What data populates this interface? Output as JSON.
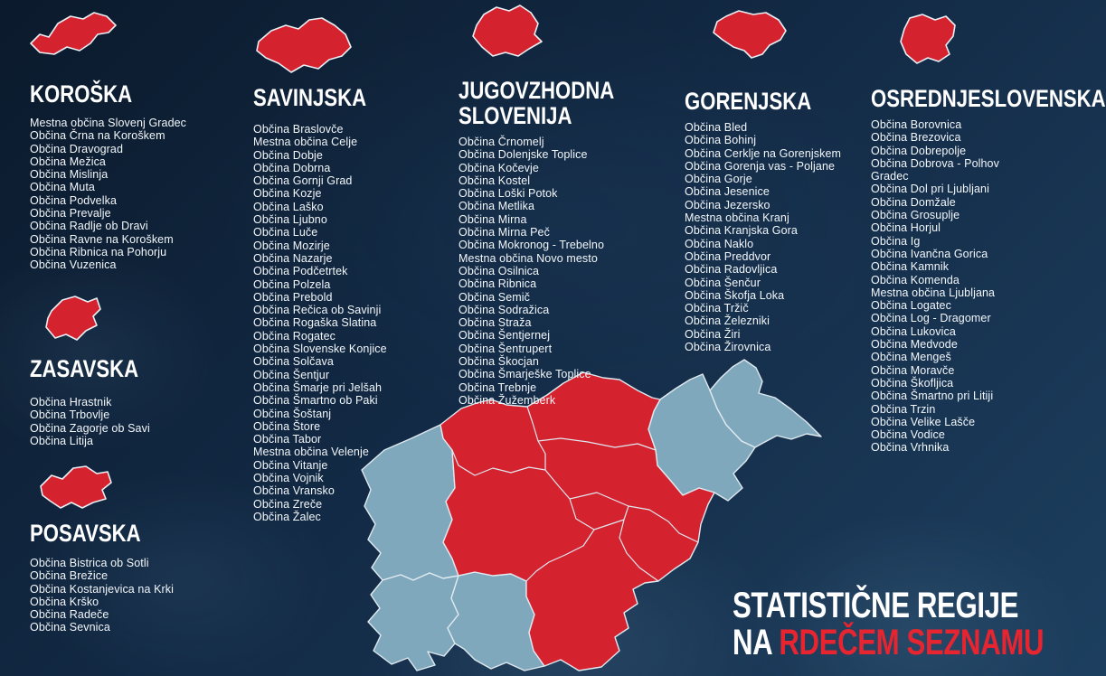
{
  "title": {
    "line1": "STATISTIČNE REGIJE",
    "line2_prefix": "NA ",
    "line2_highlight": "RDEČEM SEZNAMU"
  },
  "colors": {
    "background": "#10243b",
    "red": "#d5222f",
    "map_gray": "#7fa8bc",
    "title_red": "#e62531",
    "map_stroke": "#dfe9f0",
    "text": "#ffffff"
  },
  "regions": {
    "koroska": {
      "name": "KOROŠKA",
      "municipalities": [
        "Mestna občina Slovenj Gradec",
        "Občina Črna na Koroškem",
        "Občina Dravograd",
        "Občina Mežica",
        "Občina Mislinja",
        "Občina Muta",
        "Občina Podvelka",
        "Občina Prevalje",
        "Občina Radlje ob Dravi",
        "Občina Ravne na Koroškem",
        "Občina Ribnica na Pohorju",
        "Občina Vuzenica"
      ]
    },
    "zasavska": {
      "name": "ZASAVSKA",
      "municipalities": [
        "Občina Hrastnik",
        "Občina Trbovlje",
        "Občina Zagorje ob Savi",
        "Občina Litija"
      ]
    },
    "posavska": {
      "name": "POSAVSKA",
      "municipalities": [
        "Občina Bistrica ob Sotli",
        "Občina Brežice",
        "Občina Kostanjevica na Krki",
        "Občina Krško",
        "Občina Radeče",
        "Občina Sevnica"
      ]
    },
    "savinjska": {
      "name": "SAVINJSKA",
      "municipalities": [
        "Občina Braslovče",
        "Mestna občina Celje",
        "Občina Dobje",
        "Občina Dobrna",
        "Občina Gornji Grad",
        "Občina Kozje",
        "Občina Laško",
        "Občina Ljubno",
        "Občina Luče",
        "Občina Mozirje",
        "Občina Nazarje",
        "Občina Podčetrtek",
        "Občina Polzela",
        "Občina Prebold",
        "Občina Rečica ob Savinji",
        "Občina Rogaška Slatina",
        "Občina Rogatec",
        "Občina Slovenske Konjice",
        "Občina Solčava",
        "Občina Šentjur",
        "Občina Šmarje pri Jelšah",
        "Občina Šmartno ob Paki",
        "Občina Šoštanj",
        "Občina Štore",
        "Občina Tabor",
        "Mestna občina Velenje",
        "Občina Vitanje",
        "Občina Vojnik",
        "Občina Vransko",
        "Občina Zreče",
        "Občina Žalec"
      ]
    },
    "jugovzhodna_slovenija": {
      "name": "JUGOVZHODNA SLOVENIJA",
      "municipalities": [
        "Občina Črnomelj",
        "Občina Dolenjske Toplice",
        "Občina Kočevje",
        "Občina Kostel",
        "Občina Loški Potok",
        "Občina Metlika",
        "Občina Mirna",
        "Občina Mirna Peč",
        "Občina Mokronog - Trebelno",
        "Mestna občina Novo mesto",
        "Občina Osilnica",
        "Občina Ribnica",
        "Občina Semič",
        "Občina Sodražica",
        "Občina Straža",
        "Občina Šentjernej",
        "Občina Šentrupert",
        "Občina Škocjan",
        "Občina Šmarješke Toplice",
        "Občina Trebnje",
        "Občina Žužemberk"
      ]
    },
    "gorenjska": {
      "name": "GORENJSKA",
      "municipalities": [
        "Občina Bled",
        "Občina Bohinj",
        "Občina Cerklje na Gorenjskem",
        "Občina Gorenja vas - Poljane",
        "Občina Gorje",
        "Občina Jesenice",
        "Občina Jezersko",
        "Mestna občina Kranj",
        "Občina Kranjska Gora",
        "Občina Naklo",
        "Občina Preddvor",
        "Občina Radovljica",
        "Občina Šenčur",
        "Občina Škofja Loka",
        "Občina Tržič",
        "Občina Železniki",
        "Občina Žiri",
        "Občina Žirovnica"
      ]
    },
    "osrednjeslovenska": {
      "name": "OSREDNJESLOVENSKA",
      "municipalities": [
        "Občina Borovnica",
        "Občina Brezovica",
        "Občina Dobrepolje",
        "Občina Dobrova - Polhov Gradec",
        "Občina Dol pri Ljubljani",
        "Občina Domžale",
        "Občina Grosuplje",
        "Občina Horjul",
        "Občina Ig",
        "Občina Ivančna Gorica",
        "Občina Kamnik",
        "Občina Komenda",
        "Mestna občina Ljubljana",
        "Občina Logatec",
        "Občina Log - Dragomer",
        "Občina Lukovica",
        "Občina Medvode",
        "Občina Mengeš",
        "Občina Moravče",
        "Občina Škofljica",
        "Občina Šmartno pri Litiji",
        "Občina Trzin",
        "Občina Velike Lašče",
        "Občina Vodice",
        "Občina Vrhnika"
      ]
    }
  }
}
